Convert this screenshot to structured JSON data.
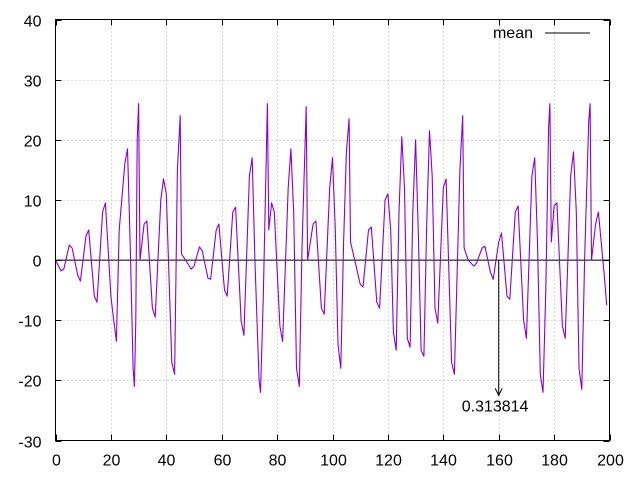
{
  "chart_data": {
    "type": "line",
    "title": "",
    "xlabel": "",
    "ylabel": "",
    "xlim": [
      0,
      200
    ],
    "ylim": [
      -30,
      40
    ],
    "x_ticks": [
      0,
      20,
      40,
      60,
      80,
      100,
      120,
      140,
      160,
      180,
      200
    ],
    "y_ticks": [
      -30,
      -20,
      -10,
      0,
      10,
      20,
      30,
      40
    ],
    "grid": true,
    "legend": {
      "position": "top-right",
      "entries": [
        "mean"
      ]
    },
    "colors": {
      "series": "#8a00d4",
      "mean_line": "#000000",
      "arrow": "#000000"
    },
    "series": [
      {
        "color": "#8a00d4",
        "points": [
          [
            0,
            0
          ],
          [
            2,
            -1.8
          ],
          [
            3,
            -1.5
          ],
          [
            5,
            2.5
          ],
          [
            6,
            2
          ],
          [
            8,
            -2.5
          ],
          [
            9,
            -3.5
          ],
          [
            11,
            4
          ],
          [
            12,
            5
          ],
          [
            14,
            -6
          ],
          [
            15,
            -7
          ],
          [
            17,
            8
          ],
          [
            18,
            9.5
          ],
          [
            20,
            -6
          ],
          [
            21,
            -10
          ],
          [
            22,
            -13.5
          ],
          [
            23,
            5
          ],
          [
            25,
            16
          ],
          [
            26,
            18.5
          ],
          [
            27,
            2
          ],
          [
            28,
            -18
          ],
          [
            28.5,
            -21
          ],
          [
            29,
            -10
          ],
          [
            29.5,
            20
          ],
          [
            30,
            26
          ],
          [
            30.5,
            0
          ],
          [
            32,
            6
          ],
          [
            33,
            6.5
          ],
          [
            35,
            -8
          ],
          [
            36,
            -9.5
          ],
          [
            38,
            10
          ],
          [
            39,
            13.5
          ],
          [
            40,
            11
          ],
          [
            42,
            -17
          ],
          [
            43,
            -19
          ],
          [
            44,
            15
          ],
          [
            45,
            24
          ],
          [
            45.5,
            1
          ],
          [
            47,
            0
          ],
          [
            49,
            -1.5
          ],
          [
            50,
            -1
          ],
          [
            52,
            2.2
          ],
          [
            53,
            1.5
          ],
          [
            55,
            -3
          ],
          [
            56,
            -3.2
          ],
          [
            58,
            5
          ],
          [
            59,
            6
          ],
          [
            61,
            -5
          ],
          [
            62,
            -6
          ],
          [
            64,
            8
          ],
          [
            65,
            8.8
          ],
          [
            67,
            -10
          ],
          [
            68,
            -12.5
          ],
          [
            70,
            14
          ],
          [
            71,
            17
          ],
          [
            72,
            0
          ],
          [
            73.5,
            -20
          ],
          [
            74,
            -22
          ],
          [
            75,
            -6
          ],
          [
            76.5,
            26
          ],
          [
            77,
            5
          ],
          [
            78,
            9.5
          ],
          [
            79,
            8
          ],
          [
            81,
            -11
          ],
          [
            82,
            -13.5
          ],
          [
            84,
            12
          ],
          [
            85,
            18.5
          ],
          [
            86,
            8
          ],
          [
            87,
            -18
          ],
          [
            88,
            -21
          ],
          [
            89,
            2
          ],
          [
            90.5,
            25.5
          ],
          [
            91,
            0
          ],
          [
            93,
            6
          ],
          [
            94,
            6.5
          ],
          [
            96,
            -8
          ],
          [
            97,
            -9
          ],
          [
            99,
            12
          ],
          [
            100,
            17
          ],
          [
            101,
            5
          ],
          [
            102,
            -14
          ],
          [
            103,
            -18
          ],
          [
            104,
            3
          ],
          [
            105,
            18
          ],
          [
            106,
            23.5
          ],
          [
            106.5,
            3
          ],
          [
            108,
            0
          ],
          [
            110,
            -4
          ],
          [
            111,
            -4.5
          ],
          [
            113,
            5
          ],
          [
            114,
            5.5
          ],
          [
            116,
            -7
          ],
          [
            117,
            -8
          ],
          [
            119,
            10
          ],
          [
            120,
            11
          ],
          [
            121,
            5
          ],
          [
            122,
            -12
          ],
          [
            123,
            -15
          ],
          [
            124,
            8
          ],
          [
            125,
            20.5
          ],
          [
            126,
            12
          ],
          [
            127,
            -13
          ],
          [
            128,
            -14.5
          ],
          [
            129,
            8
          ],
          [
            130,
            20
          ],
          [
            131,
            4
          ],
          [
            132,
            -15
          ],
          [
            133,
            -16
          ],
          [
            134,
            6
          ],
          [
            135,
            21.5
          ],
          [
            136,
            14
          ],
          [
            137,
            -8
          ],
          [
            138,
            -10.5
          ],
          [
            140,
            12
          ],
          [
            141,
            13.5
          ],
          [
            143,
            -17
          ],
          [
            144,
            -19
          ],
          [
            146,
            15
          ],
          [
            147,
            24
          ],
          [
            147.5,
            2
          ],
          [
            149,
            0
          ],
          [
            151,
            -1
          ],
          [
            152,
            -0.5
          ],
          [
            154,
            2
          ],
          [
            155,
            2.3
          ],
          [
            157,
            -2
          ],
          [
            158,
            -3.2
          ],
          [
            160,
            3
          ],
          [
            161,
            4.5
          ],
          [
            163,
            -6
          ],
          [
            164,
            -6.5
          ],
          [
            166,
            8
          ],
          [
            167,
            9
          ],
          [
            169,
            -10
          ],
          [
            170,
            -13
          ],
          [
            172,
            14
          ],
          [
            173,
            17
          ],
          [
            174,
            3
          ],
          [
            175,
            -19
          ],
          [
            176,
            -22
          ],
          [
            177,
            -5
          ],
          [
            178,
            22
          ],
          [
            178.5,
            26
          ],
          [
            179,
            3
          ],
          [
            180,
            9
          ],
          [
            181,
            9.5
          ],
          [
            183,
            -11
          ],
          [
            184,
            -13
          ],
          [
            186,
            14
          ],
          [
            187,
            18
          ],
          [
            188,
            8
          ],
          [
            189,
            -18
          ],
          [
            190,
            -21.5
          ],
          [
            191,
            0
          ],
          [
            192.5,
            23
          ],
          [
            193,
            26
          ],
          [
            193.5,
            0
          ],
          [
            195,
            6
          ],
          [
            196,
            8
          ],
          [
            198,
            -2
          ],
          [
            199,
            -7.5
          ]
        ]
      }
    ],
    "mean_line_y": 0,
    "annotation": {
      "text": "0.313814",
      "arrow_from": [
        160,
        0
      ],
      "arrow_to": [
        160,
        -22.5
      ]
    }
  }
}
